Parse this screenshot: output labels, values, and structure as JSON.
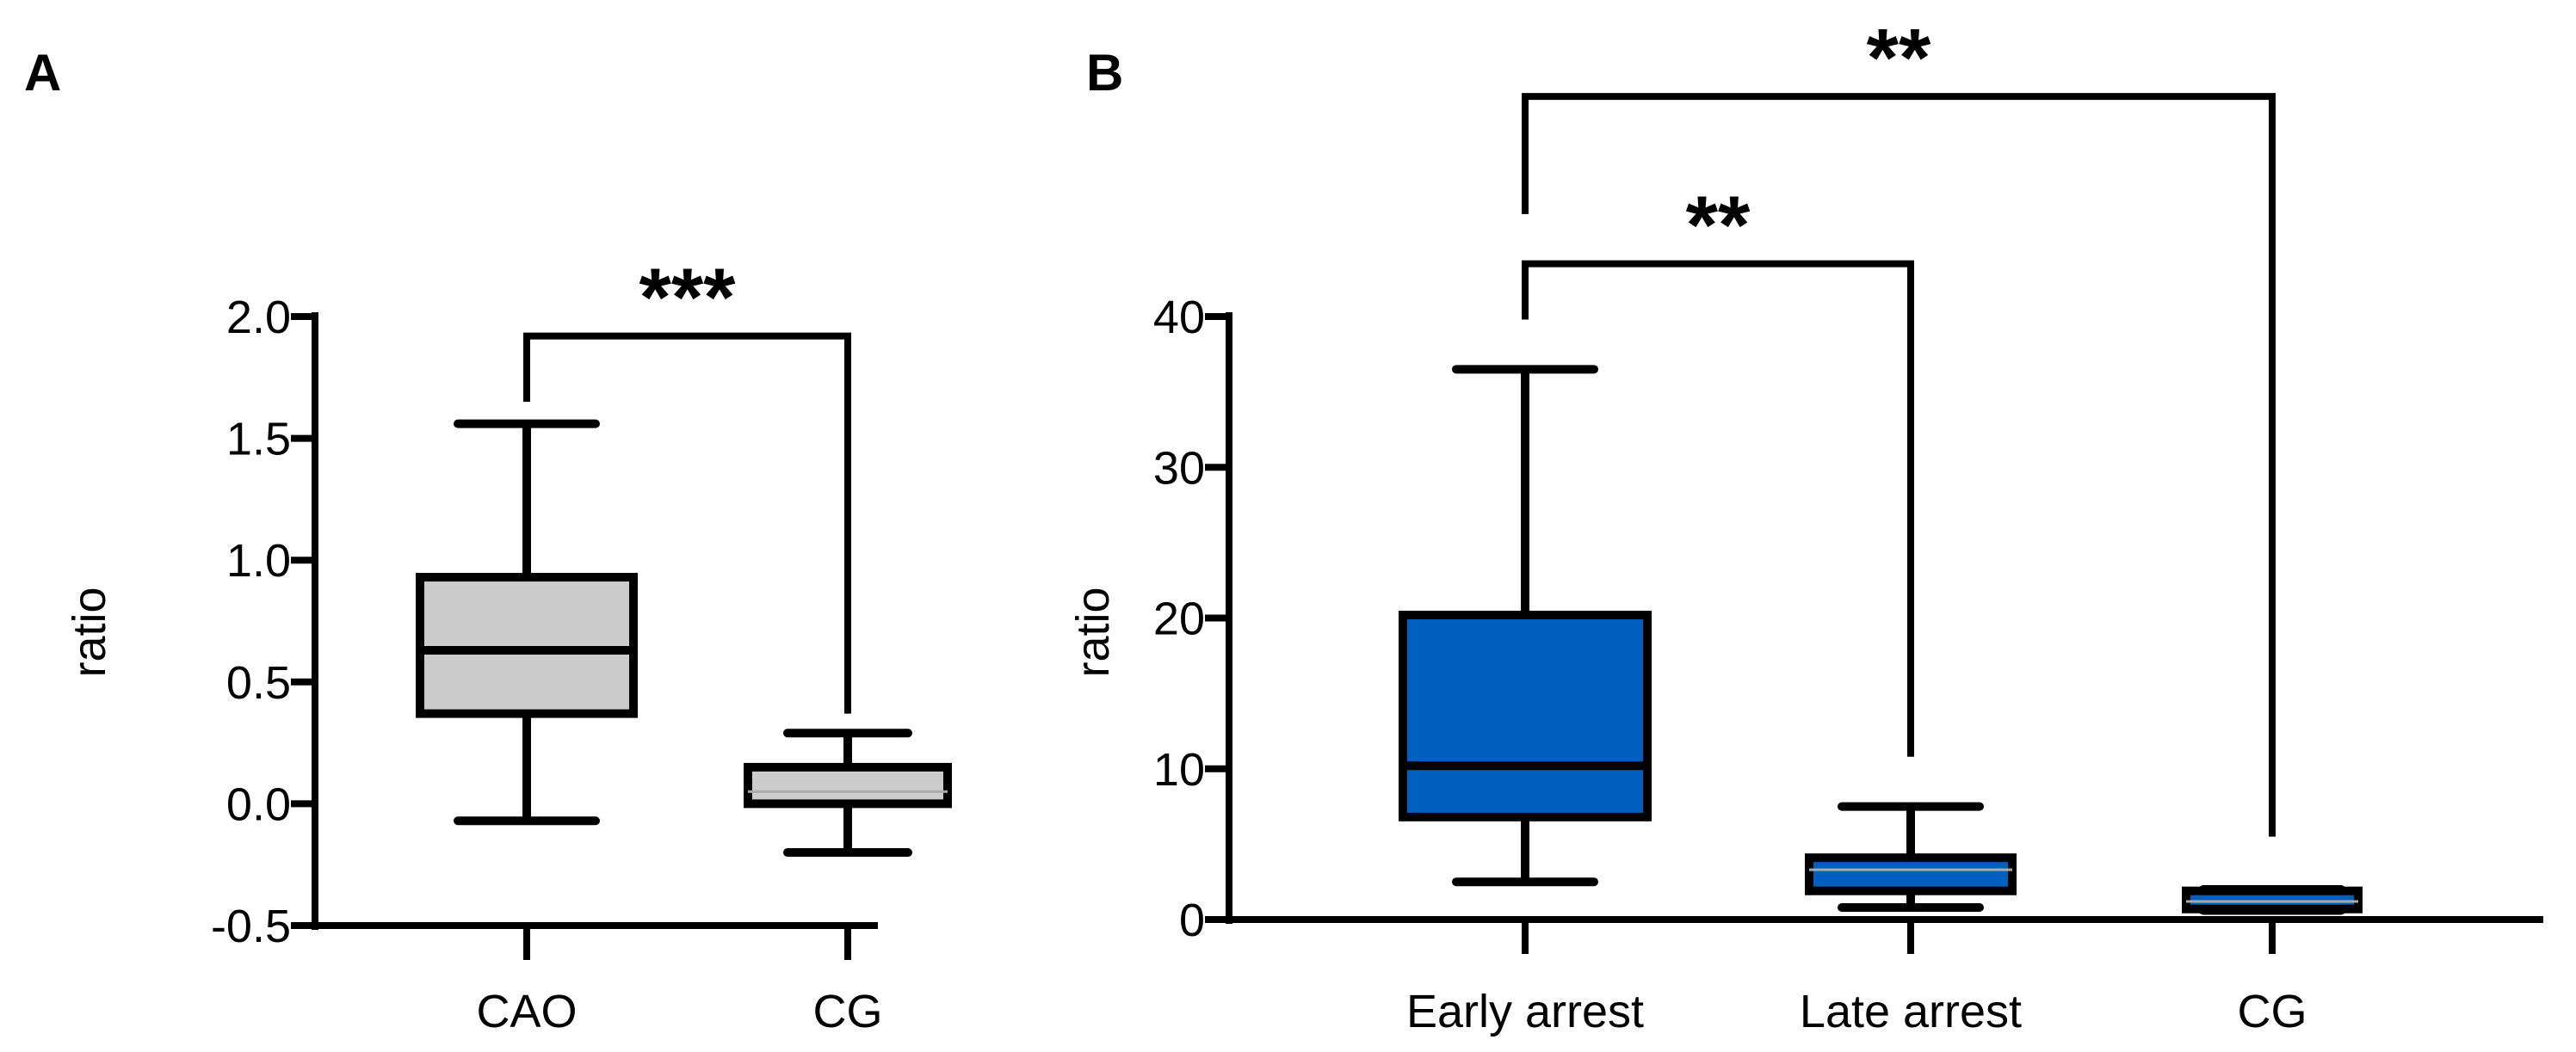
{
  "panel_labels": {
    "a": "A",
    "b": "B"
  },
  "colors": {
    "box_a": "#cccccc",
    "box_b": "#0060c0",
    "stroke": "#000000",
    "median_thin": "#aaaaaa"
  },
  "chart_data": [
    {
      "panel": "A",
      "type": "box",
      "title": "",
      "xlabel": "",
      "ylabel": "ratio",
      "ylim": [
        -0.5,
        2.0
      ],
      "yticks": [
        -0.5,
        0.0,
        0.5,
        1.0,
        1.5,
        2.0
      ],
      "ytick_labels": [
        "-0.5",
        "0.0",
        "0.5",
        "1.0",
        "1.5",
        "2.0"
      ],
      "categories": [
        "CAO",
        "CG"
      ],
      "boxes": [
        {
          "category": "CAO",
          "whisker_low": -0.07,
          "q1": 0.37,
          "median": 0.63,
          "q3": 0.93,
          "whisker_high": 1.56,
          "fill": "#cccccc"
        },
        {
          "category": "CG",
          "whisker_low": -0.2,
          "q1": 0.0,
          "median": 0.05,
          "q3": 0.15,
          "whisker_high": 0.29,
          "fill": "#cccccc"
        }
      ],
      "significance": [
        {
          "from": "CAO",
          "to": "CG",
          "label": "***",
          "bar_y": 1.92,
          "left_drop_y": 1.65,
          "right_drop_y": 0.37
        }
      ]
    },
    {
      "panel": "B",
      "type": "box",
      "title": "",
      "xlabel": "",
      "ylabel": "ratio",
      "ylim": [
        0,
        40
      ],
      "yticks": [
        0,
        10,
        20,
        30,
        40
      ],
      "ytick_labels": [
        "0",
        "10",
        "20",
        "30",
        "40"
      ],
      "categories": [
        "Early arrest",
        "Late arrest",
        "CG"
      ],
      "boxes": [
        {
          "category": "Early arrest",
          "whisker_low": 2.5,
          "q1": 6.8,
          "median": 10.2,
          "q3": 20.2,
          "whisker_high": 36.5,
          "fill": "#0060c0"
        },
        {
          "category": "Late arrest",
          "whisker_low": 0.8,
          "q1": 1.9,
          "median": 3.3,
          "q3": 4.1,
          "whisker_high": 7.5,
          "fill": "#0060c0"
        },
        {
          "category": "CG",
          "whisker_low": 0.6,
          "q1": 0.7,
          "median": 1.2,
          "q3": 1.9,
          "whisker_high": 2.0,
          "fill": "#0060c0"
        }
      ],
      "significance": [
        {
          "from": "Early arrest",
          "to": "Late arrest",
          "label": "**",
          "bar_y": 43.5,
          "left_drop_y": 39.8,
          "right_drop_y": 10.8
        },
        {
          "from": "Early arrest",
          "to": "CG",
          "label": "**",
          "bar_y": 54.6,
          "left_drop_y": 46.8,
          "right_drop_y": 5.5
        }
      ]
    }
  ]
}
